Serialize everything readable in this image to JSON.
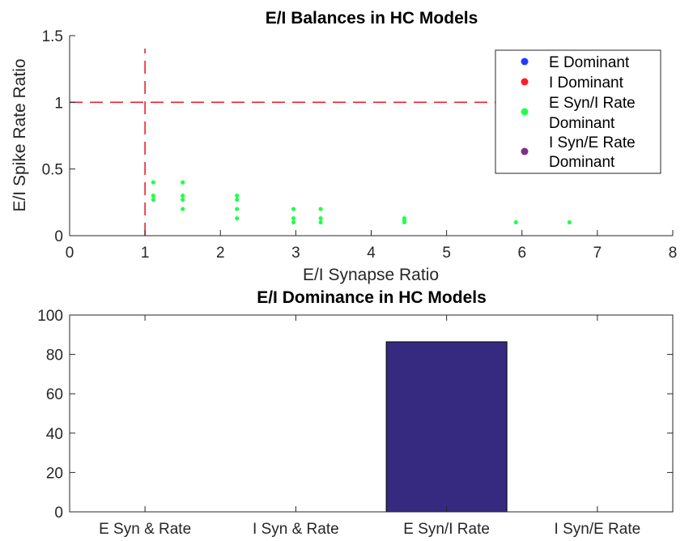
{
  "chart_data": [
    {
      "type": "scatter",
      "title": "E/I Balances in HC Models",
      "xlabel": "E/I Synapse Ratio",
      "ylabel": "E/I Spike Rate Ratio",
      "xlim": [
        0,
        8
      ],
      "ylim": [
        0,
        1.5
      ],
      "xticks": [
        "0",
        "1",
        "2",
        "3",
        "4",
        "5",
        "6",
        "7",
        "8"
      ],
      "yticks": [
        "0",
        "0.5",
        "1",
        "1.5"
      ],
      "grid": false,
      "legend_position": "top-right",
      "reference_lines": [
        {
          "orientation": "vertical",
          "value": 1,
          "color": "#e8222f",
          "style": "dashed"
        },
        {
          "orientation": "horizontal",
          "value": 1,
          "color": "#e8222f",
          "style": "dashed"
        }
      ],
      "legend": [
        {
          "lines": [
            "E Dominant"
          ],
          "color": "#1f3cff"
        },
        {
          "lines": [
            "I Dominant"
          ],
          "color": "#ff1a2e"
        },
        {
          "lines": [
            "E Syn/I Rate",
            "Dominant"
          ],
          "color": "#22ff4a"
        },
        {
          "lines": [
            "I Syn/E Rate",
            "Dominant"
          ],
          "color": "#7e2f8e"
        }
      ],
      "series": [
        {
          "name": "E Dominant",
          "color": "#1f3cff",
          "points": []
        },
        {
          "name": "I Dominant",
          "color": "#ff1a2e",
          "points": []
        },
        {
          "name": "E Syn/I Rate Dominant",
          "color": "#22ff4a",
          "points": [
            [
              1.11,
              0.4
            ],
            [
              1.11,
              0.3
            ],
            [
              1.11,
              0.27
            ],
            [
              1.5,
              0.4
            ],
            [
              1.5,
              0.3
            ],
            [
              1.5,
              0.27
            ],
            [
              1.5,
              0.2
            ],
            [
              2.22,
              0.3
            ],
            [
              2.22,
              0.27
            ],
            [
              2.22,
              0.2
            ],
            [
              2.22,
              0.13
            ],
            [
              2.97,
              0.2
            ],
            [
              2.97,
              0.13
            ],
            [
              2.97,
              0.1
            ],
            [
              3.33,
              0.2
            ],
            [
              3.33,
              0.13
            ],
            [
              3.33,
              0.1
            ],
            [
              4.44,
              0.13
            ],
            [
              4.44,
              0.11
            ],
            [
              4.44,
              0.1
            ],
            [
              5.92,
              0.1
            ],
            [
              6.63,
              0.1
            ]
          ]
        },
        {
          "name": "I Syn/E Rate Dominant",
          "color": "#7e2f8e",
          "points": []
        }
      ]
    },
    {
      "type": "bar",
      "title": "E/I Dominance in HC Models",
      "categories": [
        "E Syn & Rate",
        "I Syn & Rate",
        "E Syn/I Rate",
        "I Syn/E Rate"
      ],
      "values": [
        0,
        0,
        86.4,
        0
      ],
      "ylim": [
        0,
        100
      ],
      "yticks": [
        "0",
        "20",
        "40",
        "60",
        "80",
        "100"
      ],
      "xlabel": "",
      "ylabel": "",
      "bar_color": "#352a80",
      "grid": false
    }
  ]
}
